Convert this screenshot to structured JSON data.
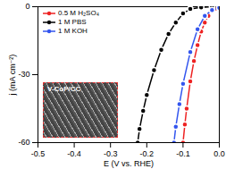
{
  "chart_data": {
    "type": "line",
    "marker": "circle",
    "x_label": "E (V vs. RHE)",
    "y_label": "j (mA cm⁻²)",
    "xlim": [
      -0.5,
      0.0
    ],
    "ylim": [
      -60,
      0
    ],
    "xticks": [
      -0.5,
      -0.4,
      -0.3,
      -0.2,
      -0.1,
      {
        "value": 0,
        "label": "0.0"
      }
    ],
    "yticks": [
      0,
      -30,
      -60
    ],
    "legend": "top-left",
    "annotations": [
      {
        "text": "V-CoP/CC"
      }
    ],
    "series": [
      {
        "name": "0.5 M H₂SO₄",
        "color": "#ee2222",
        "x": [
          0,
          -0.01,
          -0.02,
          -0.03,
          -0.04,
          -0.05,
          -0.06,
          -0.07,
          -0.08,
          -0.09,
          -0.095,
          -0.1
        ],
        "values": [
          -0.3,
          -0.8,
          -2,
          -4,
          -7,
          -11,
          -17,
          -24,
          -33,
          -45,
          -52,
          -60
        ]
      },
      {
        "name": "1 M PBS",
        "color": "#000000",
        "x": [
          0,
          -0.02,
          -0.05,
          -0.08,
          -0.1,
          -0.12,
          -0.14,
          -0.16,
          -0.18,
          -0.2,
          -0.21,
          -0.22,
          -0.225
        ],
        "values": [
          0,
          0,
          -0.3,
          -1,
          -3,
          -7,
          -12,
          -19,
          -28,
          -39,
          -46,
          -54,
          -60
        ]
      },
      {
        "name": "1 M KOH",
        "color": "#3355ee",
        "x": [
          0,
          -0.02,
          -0.04,
          -0.06,
          -0.08,
          -0.1,
          -0.11,
          -0.12,
          -0.125
        ],
        "values": [
          -0.5,
          -1.5,
          -4,
          -10,
          -20,
          -34,
          -43,
          -53,
          -60
        ]
      }
    ]
  }
}
